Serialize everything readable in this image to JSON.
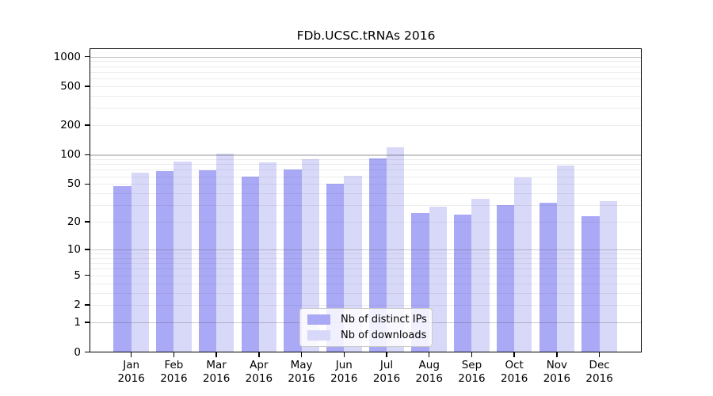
{
  "title": "FDb.UCSC.tRNAs 2016",
  "chart_data": {
    "type": "bar",
    "title": "FDb.UCSC.tRNAs 2016",
    "categories": [
      "Jan 2016",
      "Feb 2016",
      "Mar 2016",
      "Apr 2016",
      "May 2016",
      "Jun 2016",
      "Jul 2016",
      "Aug 2016",
      "Sep 2016",
      "Oct 2016",
      "Nov 2016",
      "Dec 2016"
    ],
    "series": [
      {
        "name": "Nb of distinct IPs",
        "color": "#a9a9f6",
        "values": [
          47,
          68,
          69,
          59,
          70,
          50,
          91,
          25,
          24,
          30,
          32,
          23
        ]
      },
      {
        "name": "Nb of downloads",
        "color": "#d8d8f9",
        "values": [
          65,
          85,
          102,
          84,
          90,
          61,
          120,
          29,
          35,
          58,
          77,
          33
        ]
      }
    ],
    "xlabel": "",
    "ylabel": "",
    "yscale": "log1p",
    "ylim": [
      0,
      1200
    ],
    "yticks": [
      1000,
      500,
      200,
      100,
      50,
      20,
      10,
      5,
      2,
      1,
      0
    ],
    "grid": true,
    "legend_position": "lower center"
  },
  "legend": {
    "items": [
      {
        "label": "Nb of distinct IPs"
      },
      {
        "label": "Nb of downloads"
      }
    ]
  },
  "colors": {
    "distinct_ips": "#a9a9f6",
    "downloads": "#d8d8f9",
    "major_grid": "#b9b9b9",
    "minor_grid": "#e9e9e9"
  }
}
